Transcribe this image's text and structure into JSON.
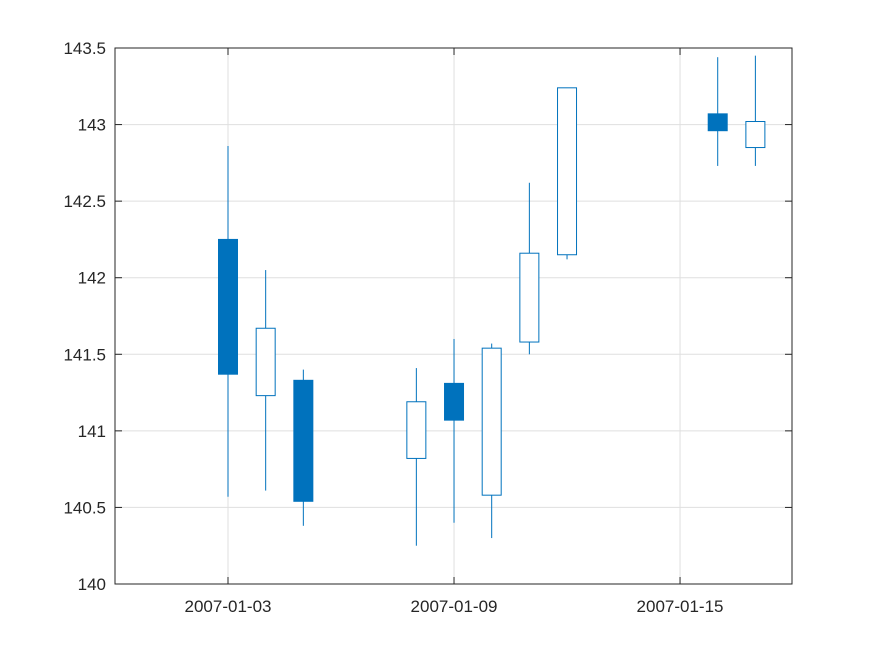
{
  "chart_data": {
    "type": "candlestick",
    "title": "",
    "xlabel": "",
    "ylabel": "",
    "ylim": [
      140,
      143.5
    ],
    "y_ticks": [
      140,
      140.5,
      141,
      141.5,
      142,
      142.5,
      143,
      143.5
    ],
    "y_tick_labels": [
      "140",
      "140.5",
      "141",
      "141.5",
      "142",
      "142.5",
      "143",
      "143.5"
    ],
    "xlim": [
      "2007-12-31",
      "2007-01-19"
    ],
    "x_ticks": [
      "2007-01-03",
      "2007-01-09",
      "2007-01-15"
    ],
    "x_tick_labels": [
      "2007-01-03",
      "2007-01-09",
      "2007-01-15"
    ],
    "grid": true,
    "color": "#0072BD",
    "candles": [
      {
        "date": "2007-01-03",
        "open": 142.25,
        "high": 142.86,
        "low": 140.57,
        "close": 141.37
      },
      {
        "date": "2007-01-04",
        "open": 141.23,
        "high": 142.05,
        "low": 140.61,
        "close": 141.67
      },
      {
        "date": "2007-01-05",
        "open": 141.33,
        "high": 141.4,
        "low": 140.38,
        "close": 140.54
      },
      {
        "date": "2007-01-08",
        "open": 140.82,
        "high": 141.41,
        "low": 140.25,
        "close": 141.19
      },
      {
        "date": "2007-01-09",
        "open": 141.31,
        "high": 141.6,
        "low": 140.4,
        "close": 141.07
      },
      {
        "date": "2007-01-10",
        "open": 140.58,
        "high": 141.57,
        "low": 140.3,
        "close": 141.54
      },
      {
        "date": "2007-01-11",
        "open": 141.58,
        "high": 142.62,
        "low": 141.5,
        "close": 142.16
      },
      {
        "date": "2007-01-12",
        "open": 142.15,
        "high": 143.24,
        "low": 142.12,
        "close": 143.24
      },
      {
        "date": "2007-01-16",
        "open": 143.07,
        "high": 143.44,
        "low": 142.73,
        "close": 142.96
      },
      {
        "date": "2007-01-17",
        "open": 142.85,
        "high": 143.45,
        "low": 142.73,
        "close": 143.02
      }
    ]
  }
}
